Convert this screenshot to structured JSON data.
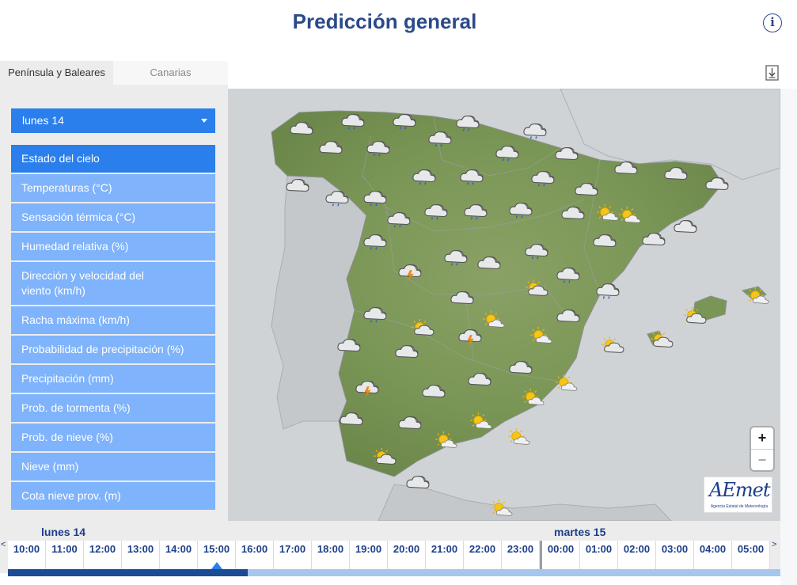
{
  "header": {
    "title": "Predicción general",
    "info_glyph": "i"
  },
  "region_tabs": [
    {
      "label": "Península y Baleares",
      "active": true
    },
    {
      "label": "Canarias",
      "active": false
    }
  ],
  "sidebar": {
    "day_select": "lunes 14",
    "variables": [
      {
        "label": "Estado del cielo",
        "active": true
      },
      {
        "label": "Temperaturas (°C)"
      },
      {
        "label": "Sensación térmica (°C)"
      },
      {
        "label": "Humedad relativa (%)"
      },
      {
        "label": "Dirección y velocidad del viento (km/h)"
      },
      {
        "label": "Racha máxima (km/h)"
      },
      {
        "label": "Probabilidad de precipitación (%)"
      },
      {
        "label": "Precipitación (mm)"
      },
      {
        "label": "Prob. de tormenta (%)"
      },
      {
        "label": "Prob. de nieve (%)"
      },
      {
        "label": "Nieve (mm)"
      },
      {
        "label": "Cota nieve prov. (m)"
      }
    ]
  },
  "map": {
    "zoom_in": "+",
    "zoom_out": "−",
    "logo": {
      "text": "AEmet",
      "subtitle": "Agencia Estatal de Meteorología"
    }
  },
  "timeline": {
    "days": [
      {
        "label": "lunes 14",
        "hours": [
          "10:00",
          "11:00",
          "12:00",
          "13:00",
          "14:00",
          "15:00",
          "16:00",
          "17:00",
          "18:00",
          "19:00",
          "20:00",
          "21:00",
          "22:00",
          "23:00"
        ]
      },
      {
        "label": "martes 15",
        "hours": [
          "00:00",
          "01:00",
          "02:00",
          "03:00",
          "04:00",
          "05:00"
        ]
      }
    ],
    "selected_hour": "15:00",
    "progress": 0.31,
    "prev_arrow": "<",
    "next_arrow": ">"
  },
  "colors": {
    "accent": "#2a7fec",
    "menu": "#7fb3fb",
    "title": "#2b4a8a",
    "land": "#7e9a58",
    "sea": "#cfd3d6"
  }
}
